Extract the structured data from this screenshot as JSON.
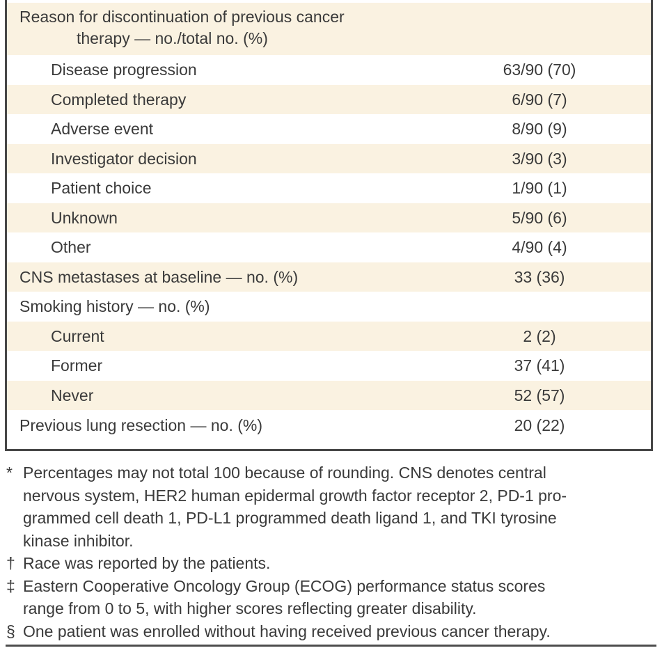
{
  "colors": {
    "shade": "#faf2e1",
    "border": "#474747",
    "text": "#3a3a3a",
    "rule": "#4d4d4d"
  },
  "table": {
    "header": {
      "line1": "Reason for discontinuation of previous cancer",
      "line2": "therapy — no./total no. (%)"
    },
    "rows": [
      {
        "label": "Disease progression",
        "value": "63/90 (70)",
        "indent": 1,
        "shaded": false
      },
      {
        "label": "Completed therapy",
        "value": "6/90 (7)",
        "indent": 1,
        "shaded": true
      },
      {
        "label": "Adverse event",
        "value": "8/90 (9)",
        "indent": 1,
        "shaded": false
      },
      {
        "label": "Investigator decision",
        "value": "3/90 (3)",
        "indent": 1,
        "shaded": true
      },
      {
        "label": "Patient choice",
        "value": "1/90 (1)",
        "indent": 1,
        "shaded": false
      },
      {
        "label": "Unknown",
        "value": "5/90 (6)",
        "indent": 1,
        "shaded": true
      },
      {
        "label": "Other",
        "value": "4/90 (4)",
        "indent": 1,
        "shaded": false
      },
      {
        "label": "CNS metastases at baseline — no. (%)",
        "value": "33 (36)",
        "indent": 0,
        "shaded": true
      },
      {
        "label": "Smoking history — no. (%)",
        "value": "",
        "indent": 0,
        "shaded": false
      },
      {
        "label": "Current",
        "value": "2 (2)",
        "indent": 1,
        "shaded": true
      },
      {
        "label": "Former",
        "value": "37 (41)",
        "indent": 1,
        "shaded": false
      },
      {
        "label": "Never",
        "value": "52 (57)",
        "indent": 1,
        "shaded": true
      },
      {
        "label": "Previous lung resection — no. (%)",
        "value": "20 (22)",
        "indent": 0,
        "shaded": false
      }
    ]
  },
  "footnotes": [
    {
      "marker": "*",
      "lines": [
        "Percentages may not total 100 because of rounding. CNS denotes central",
        "nervous system, HER2 human epidermal growth factor receptor 2, PD-1 pro-",
        "grammed cell death 1, PD-L1 programmed death ligand 1, and TKI tyrosine",
        "kinase inhibitor."
      ]
    },
    {
      "marker": "†",
      "lines": [
        "Race was reported by the patients."
      ]
    },
    {
      "marker": "‡",
      "lines": [
        "Eastern Cooperative Oncology Group (ECOG) performance status scores",
        "range from 0 to 5, with higher scores reflecting greater disability."
      ]
    },
    {
      "marker": "§",
      "lines": [
        "One patient was enrolled without having received previous cancer therapy."
      ]
    }
  ]
}
